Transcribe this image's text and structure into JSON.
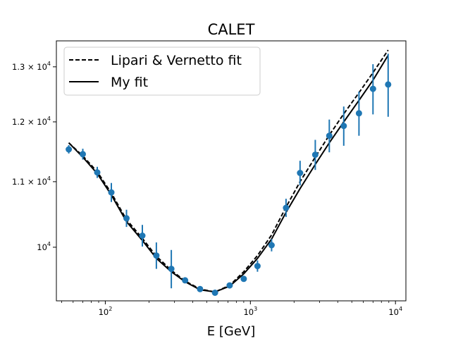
{
  "chart_data": {
    "type": "scatter",
    "title": "CALET",
    "xlabel": "E [GeV]",
    "ylabel": "",
    "xscale": "log",
    "yscale": "log",
    "xlim": [
      46,
      11800
    ],
    "ylim": [
      9250,
      13500
    ],
    "x_ticks": [
      {
        "value": 100,
        "base": "10",
        "exp": "2"
      },
      {
        "value": 1000,
        "base": "10",
        "exp": "3"
      },
      {
        "value": 10000,
        "base": "10",
        "exp": "4"
      }
    ],
    "y_ticks": [
      {
        "value": 10000,
        "mant": "",
        "base": "10",
        "exp": "4"
      },
      {
        "value": 11000,
        "mant": "1.1 × ",
        "base": "10",
        "exp": "4"
      },
      {
        "value": 12000,
        "mant": "1.2 × ",
        "base": "10",
        "exp": "4"
      },
      {
        "value": 13000,
        "mant": "1.3 × ",
        "base": "10",
        "exp": "4"
      }
    ],
    "legend_position": "top-left",
    "grid": false,
    "series": [
      {
        "name": "Lipari & Vernetto fit",
        "kind": "line",
        "style": "dashed",
        "color": "#000000",
        "x": [
          56,
          70,
          88,
          110,
          140,
          180,
          225,
          285,
          355,
          450,
          570,
          720,
          900,
          1120,
          1400,
          1760,
          2200,
          2800,
          3500,
          4400,
          5600,
          7000,
          8900
        ],
        "y": [
          11640,
          11420,
          11160,
          10820,
          10410,
          10130,
          9870,
          9670,
          9520,
          9410,
          9370,
          9460,
          9650,
          9880,
          10180,
          10600,
          11000,
          11400,
          11770,
          12140,
          12520,
          12890,
          13320
        ]
      },
      {
        "name": "My fit",
        "kind": "line",
        "style": "solid",
        "color": "#000000",
        "x": [
          56,
          70,
          88,
          110,
          140,
          180,
          225,
          285,
          355,
          450,
          570,
          720,
          900,
          1120,
          1400,
          1760,
          2200,
          2800,
          3500,
          4400,
          5600,
          7000,
          8900
        ],
        "y": [
          11640,
          11400,
          11130,
          10790,
          10380,
          10100,
          9840,
          9650,
          9510,
          9400,
          9370,
          9450,
          9620,
          9840,
          10120,
          10520,
          10890,
          11280,
          11640,
          12000,
          12380,
          12750,
          13220
        ]
      },
      {
        "name": "",
        "kind": "errorbar",
        "color": "#1f77b4",
        "x": [
          56,
          70,
          88,
          110,
          140,
          180,
          225,
          285,
          355,
          450,
          570,
          720,
          900,
          1120,
          1400,
          1760,
          2200,
          2800,
          3500,
          4400,
          5600,
          7000,
          8900
        ],
        "y": [
          11530,
          11450,
          11150,
          10830,
          10430,
          10170,
          9880,
          9690,
          9530,
          9410,
          9360,
          9460,
          9550,
          9730,
          10030,
          10590,
          11140,
          11440,
          11760,
          11930,
          12150,
          12590,
          12670
        ],
        "err_low": [
          70,
          90,
          90,
          150,
          130,
          160,
          190,
          270,
          0,
          0,
          0,
          0,
          0,
          80,
          90,
          140,
          200,
          250,
          280,
          340,
          390,
          460,
          580
        ],
        "err_high": [
          70,
          90,
          90,
          150,
          130,
          160,
          190,
          270,
          0,
          0,
          0,
          0,
          0,
          80,
          90,
          140,
          200,
          250,
          280,
          340,
          390,
          460,
          580
        ]
      }
    ]
  }
}
